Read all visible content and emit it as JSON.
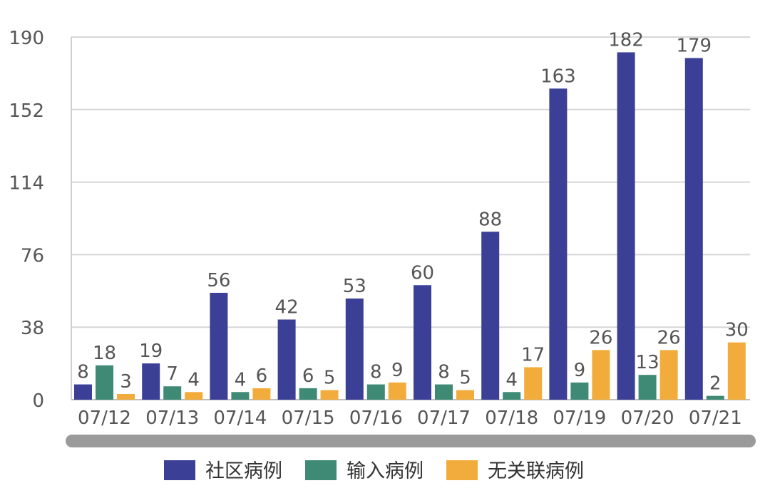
{
  "chart_data": {
    "type": "bar",
    "categories": [
      "07/12",
      "07/13",
      "07/14",
      "07/15",
      "07/16",
      "07/17",
      "07/18",
      "07/19",
      "07/20",
      "07/21"
    ],
    "series": [
      {
        "name": "社区病例",
        "color": "#3b3f96",
        "values": [
          8,
          19,
          56,
          42,
          53,
          60,
          88,
          163,
          182,
          179
        ]
      },
      {
        "name": "输入病例",
        "color": "#3f8a75",
        "values": [
          18,
          7,
          4,
          6,
          8,
          8,
          4,
          9,
          13,
          2
        ]
      },
      {
        "name": "无关联病例",
        "color": "#f2ac3c",
        "values": [
          3,
          4,
          6,
          5,
          9,
          5,
          17,
          26,
          26,
          30
        ]
      }
    ],
    "yticks": [
      "0",
      "38",
      "76",
      "114",
      "152",
      "190"
    ],
    "ylim": [
      0,
      190
    ],
    "grid": true,
    "legend_position": "bottom",
    "title": "",
    "xlabel": "",
    "ylabel": ""
  },
  "scrollbar_color": "#9a9a9a"
}
